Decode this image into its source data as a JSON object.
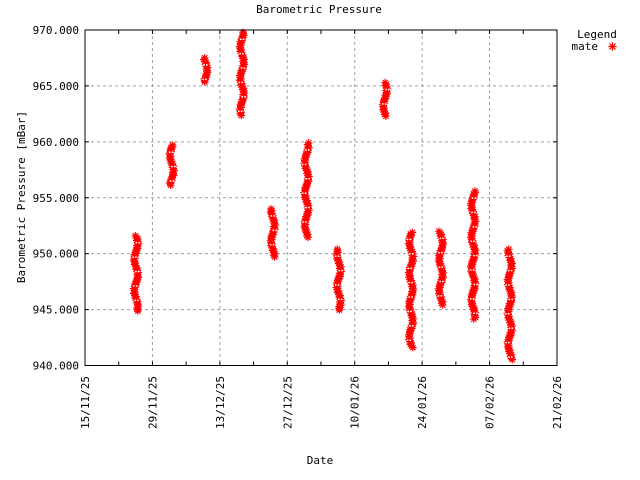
{
  "title": "Barometric Pressure",
  "xlabel": "Date",
  "ylabel": "Barometric Pressure [mBar]",
  "legend": {
    "title": "Legend",
    "position": "top-right-outside",
    "entries": [
      {
        "label": "mate",
        "marker": "asterisk",
        "color": "#ff0000"
      }
    ]
  },
  "colors": {
    "series": "#ff0000",
    "grid": "#a0a0a0",
    "axis": "#000000",
    "background": "#ffffff",
    "text": "#000000"
  },
  "axes": {
    "x": {
      "label": "Date",
      "tick_labels": [
        "15/11/25",
        "29/11/25",
        "13/12/25",
        "27/12/25",
        "10/01/26",
        "24/01/26",
        "07/02/26",
        "21/02/26"
      ],
      "tick_days": [
        0,
        14,
        28,
        42,
        56,
        70,
        84,
        98
      ],
      "minor_tick_days": [
        7,
        21,
        35,
        49,
        63,
        77,
        91
      ],
      "range_days": [
        0,
        98
      ],
      "rotated_labels": true
    },
    "y": {
      "label": "Barometric Pressure [mBar]",
      "tick_labels": [
        "940.000",
        "945.000",
        "950.000",
        "955.000",
        "960.000",
        "965.000",
        "970.000"
      ],
      "tick_values": [
        940,
        945,
        950,
        955,
        960,
        965,
        970
      ],
      "range": [
        940,
        970
      ]
    }
  },
  "chart_data": {
    "type": "scatter",
    "title": "Barometric Pressure",
    "xlabel": "Date",
    "ylabel": "Barometric Pressure [mBar]",
    "x_range": [
      "15/11/25",
      "21/02/26"
    ],
    "x_range_days": 98,
    "ylim": [
      940,
      970
    ],
    "grid": true,
    "legend_position": "top-right-outside",
    "marker": "asterisk",
    "series": [
      {
        "name": "mate",
        "color": "#ff0000",
        "clusters": [
          {
            "date": "26/11/25",
            "day": 10.6,
            "pressure_max": 951.6,
            "pressure_min": 944.8
          },
          {
            "date": "03/12/25",
            "day": 18.0,
            "pressure_max": 959.7,
            "pressure_min": 956.0
          },
          {
            "date": "10/12/25",
            "day": 25.0,
            "pressure_max": 967.5,
            "pressure_min": 965.3
          },
          {
            "date": "18/12/25",
            "day": 32.6,
            "pressure_max": 969.8,
            "pressure_min": 962.3
          },
          {
            "date": "24/12/25",
            "day": 39.0,
            "pressure_max": 954.0,
            "pressure_min": 949.7
          },
          {
            "date": "31/12/25",
            "day": 46.0,
            "pressure_max": 959.9,
            "pressure_min": 951.4
          },
          {
            "date": "07/01/26",
            "day": 52.7,
            "pressure_max": 950.4,
            "pressure_min": 944.9
          },
          {
            "date": "16/01/26",
            "day": 62.3,
            "pressure_max": 965.3,
            "pressure_min": 962.2
          },
          {
            "date": "22/01/26",
            "day": 67.7,
            "pressure_max": 951.9,
            "pressure_min": 941.6
          },
          {
            "date": "28/01/26",
            "day": 73.9,
            "pressure_max": 952.0,
            "pressure_min": 945.3
          },
          {
            "date": "04/02/26",
            "day": 80.6,
            "pressure_max": 955.6,
            "pressure_min": 944.1
          },
          {
            "date": "11/02/26",
            "day": 88.2,
            "pressure_max": 950.4,
            "pressure_min": 940.5
          }
        ]
      }
    ]
  }
}
